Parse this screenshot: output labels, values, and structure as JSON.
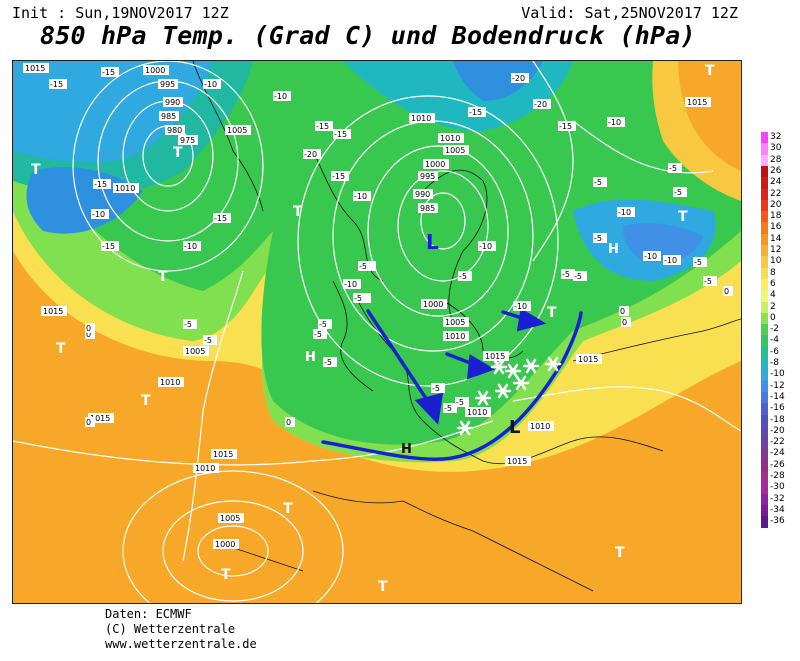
{
  "header": {
    "init_text": "Init : Sun,19NOV2017 12Z",
    "valid_text": "Valid: Sat,25NOV2017 12Z",
    "title": "850 hPa Temp. (Grad C) und Bodendruck (hPa)"
  },
  "footer": {
    "line1": "Daten: ECMWF",
    "line2": "(C) Wetterzentrale",
    "line3": "www.wetterzentrale.de"
  },
  "scale": {
    "values": [
      "32",
      "30",
      "28",
      "26",
      "24",
      "22",
      "20",
      "18",
      "16",
      "14",
      "12",
      "10",
      "8",
      "6",
      "4",
      "2",
      "0",
      "-2",
      "-4",
      "-6",
      "-8",
      "-10",
      "-12",
      "-14",
      "-16",
      "-18",
      "-20",
      "-22",
      "-24",
      "-26",
      "-28",
      "-30",
      "-32",
      "-34",
      "-36"
    ],
    "colors": [
      "#ff40ff",
      "#ff80ff",
      "#ffb0ff",
      "#c01010",
      "#d01818",
      "#e02020",
      "#f03818",
      "#f85818",
      "#f87818",
      "#f89818",
      "#f8b030",
      "#f8c840",
      "#f8dc50",
      "#f8f060",
      "#f0f870",
      "#c8f060",
      "#90e050",
      "#50d050",
      "#30c860",
      "#20c090",
      "#20b8c0",
      "#30a8e0",
      "#4090e8",
      "#4878e0",
      "#5060d0",
      "#5050c0",
      "#6048b0",
      "#7040a0",
      "#803890",
      "#903080",
      "#a03090",
      "#a828a0",
      "#9020a0",
      "#7818a0",
      "#601890"
    ]
  },
  "pressure_labels": [
    {
      "text": "1015"
    },
    {
      "text": "1000"
    },
    {
      "text": "995"
    },
    {
      "text": "990"
    },
    {
      "text": "985"
    },
    {
      "text": "980"
    },
    {
      "text": "975"
    },
    {
      "text": "1005"
    },
    {
      "text": "1010"
    },
    {
      "text": "1010"
    },
    {
      "text": "1005"
    },
    {
      "text": "1000"
    },
    {
      "text": "995"
    },
    {
      "text": "990"
    },
    {
      "text": "985"
    },
    {
      "text": "1000"
    },
    {
      "text": "1005"
    },
    {
      "text": "1010"
    },
    {
      "text": "1015"
    },
    {
      "text": "1010"
    },
    {
      "text": "1015"
    },
    {
      "text": "1015"
    },
    {
      "text": "1010"
    },
    {
      "text": "1005"
    },
    {
      "text": "1000"
    },
    {
      "text": "1015"
    },
    {
      "text": "1010"
    },
    {
      "text": "1005"
    },
    {
      "text": "1015"
    },
    {
      "text": "1015"
    },
    {
      "text": "1015"
    },
    {
      "text": "1010"
    },
    {
      "text": "1010"
    }
  ],
  "temp_labels": [
    "-15",
    "-15",
    "-10",
    "-10",
    "-15",
    "-15",
    "-20",
    "-15",
    "-10",
    "-5",
    "-5",
    "-10",
    "-15",
    "-20",
    "-15",
    "-10",
    "-5",
    "-5",
    "0",
    "0",
    "-5",
    "-5",
    "-10",
    "-15",
    "-20",
    "-15",
    "-10",
    "-5",
    "0",
    "-5",
    "-10",
    "-15",
    "-10",
    "-5",
    "-5",
    "0",
    "-5",
    "-5",
    "0",
    "-5",
    "-10",
    "-5",
    "-5",
    "-10",
    "-5",
    "0",
    "-5",
    "0",
    "-5",
    "-10",
    "-5"
  ],
  "centers": [
    {
      "letter": "L"
    },
    {
      "letter": "H"
    },
    {
      "letter": "H"
    },
    {
      "letter": "H"
    },
    {
      "letter": "L"
    },
    {
      "letter": "T"
    },
    {
      "letter": "T"
    },
    {
      "letter": "T"
    },
    {
      "letter": "T"
    },
    {
      "letter": "T"
    },
    {
      "letter": "T"
    },
    {
      "letter": "T"
    },
    {
      "letter": "T"
    },
    {
      "letter": "T"
    },
    {
      "letter": "T"
    },
    {
      "letter": "T"
    },
    {
      "letter": "T"
    },
    {
      "letter": "T"
    }
  ]
}
